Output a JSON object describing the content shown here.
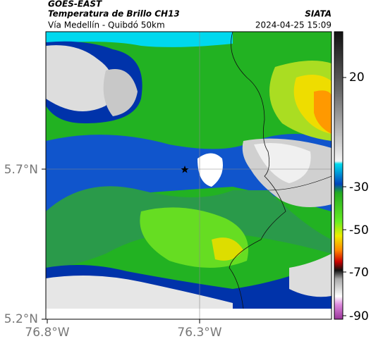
{
  "header": {
    "satellite": "GOES-EAST",
    "product": "Temperatura de Brillo CH13",
    "organization": "SIATA",
    "location": "Vía Medellín - Quibdó 50km",
    "timestamp": "2024-04-25 15:09"
  },
  "axes": {
    "latitude": [
      "5.7°N",
      "5.2°N"
    ],
    "longitude": [
      "76.8°W",
      "76.3°W"
    ]
  },
  "colorbar": {
    "ticks": [
      "20",
      "-30",
      "-50",
      "-70",
      "-90"
    ]
  }
}
